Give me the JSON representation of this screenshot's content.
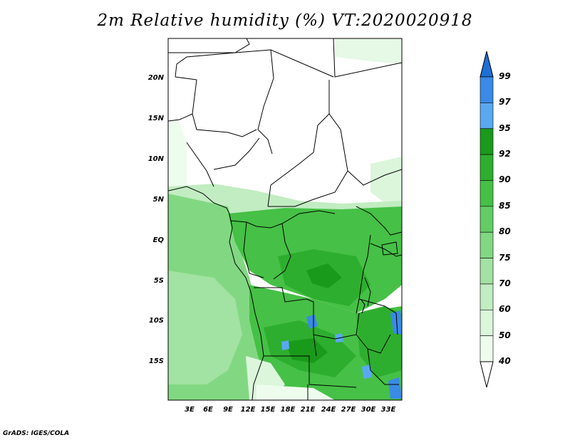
{
  "title": "2m Relative humidity (%) VT:2020020918",
  "footer": "GrADS: IGES/COLA",
  "map": {
    "lat_ticks": [
      "20N",
      "15N",
      "10N",
      "5N",
      "EQ",
      "5S",
      "10S",
      "15S"
    ],
    "lon_ticks": [
      "3E",
      "6E",
      "9E",
      "12E",
      "15E",
      "18E",
      "21E",
      "24E",
      "27E",
      "30E",
      "33E"
    ],
    "variable": "2m Relative humidity",
    "units": "%"
  },
  "colorbar": {
    "levels": [
      "99",
      "97",
      "95",
      "92",
      "90",
      "85",
      "80",
      "75",
      "70",
      "60",
      "50",
      "40"
    ],
    "colors": [
      "#1e6fd6",
      "#3a8ae6",
      "#5aa8f0",
      "#1a9a1a",
      "#2eae2e",
      "#46c046",
      "#64cc64",
      "#82d882",
      "#a2e2a2",
      "#c2ecc2",
      "#dcf6dc",
      "#eefcee",
      "#ffffff"
    ]
  }
}
